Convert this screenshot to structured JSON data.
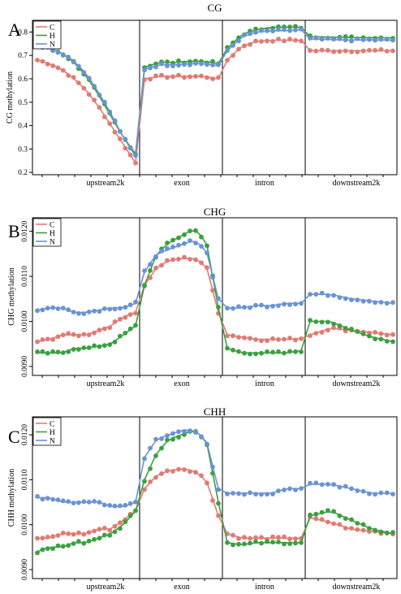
{
  "chart_data": [
    {
      "type": "line",
      "panel_letter": "A",
      "title": "CG",
      "ylabel": "CG methylation",
      "regions": [
        "upstream2k",
        "exon",
        "intron",
        "downstream2k"
      ],
      "ylim": [
        0.19,
        0.85
      ],
      "yticks": [
        0.2,
        0.3,
        0.4,
        0.5,
        0.6,
        0.7,
        0.8
      ],
      "yticklabels": [
        "0.2",
        "0.3",
        "0.4",
        "0.5",
        "0.6",
        "0.7",
        "0.8"
      ],
      "legend": [
        "C",
        "H",
        "N"
      ],
      "legend_position": "top-left",
      "series": [
        {
          "name": "C",
          "color": "#e07b72",
          "profile": [
            [
              0.68,
              0.665,
              0.64,
              0.6,
              0.55,
              0.48,
              0.4,
              0.32,
              0.24
            ],
            [
              0.6,
              0.61,
              0.61,
              0.61,
              0.61,
              0.6
            ],
            [
              0.68,
              0.74,
              0.76,
              0.765,
              0.765,
              0.765
            ],
            [
              0.72,
              0.72,
              0.72,
              0.72,
              0.72
            ]
          ]
        },
        {
          "name": "H",
          "color": "#3aa040",
          "profile": [
            [
              0.74,
              0.73,
              0.71,
              0.67,
              0.61,
              0.53,
              0.44,
              0.35,
              0.28
            ],
            [
              0.65,
              0.67,
              0.67,
              0.675,
              0.675,
              0.665
            ],
            [
              0.73,
              0.79,
              0.81,
              0.82,
              0.82,
              0.82
            ],
            [
              0.78,
              0.778,
              0.776,
              0.776,
              0.775
            ]
          ]
        },
        {
          "name": "N",
          "color": "#6a93d3",
          "profile": [
            [
              0.74,
              0.73,
              0.71,
              0.675,
              0.62,
              0.54,
              0.45,
              0.35,
              0.27
            ],
            [
              0.64,
              0.66,
              0.66,
              0.665,
              0.665,
              0.655
            ],
            [
              0.72,
              0.78,
              0.8,
              0.805,
              0.806,
              0.81
            ],
            [
              0.77,
              0.768,
              0.766,
              0.766,
              0.765
            ]
          ]
        }
      ]
    },
    {
      "type": "line",
      "panel_letter": "B",
      "title": "CHG",
      "ylabel": "CHG methylation",
      "regions": [
        "upstream2k",
        "exon",
        "intron",
        "downstream2k"
      ],
      "ylim": [
        0.0088,
        0.0123
      ],
      "yticks": [
        0.009,
        0.01,
        0.011,
        0.012
      ],
      "yticklabels": [
        "0.0090",
        "0.0100",
        "0.0110",
        "0.0120"
      ],
      "legend": [
        "C",
        "H",
        "N"
      ],
      "legend_position": "top-left",
      "series": [
        {
          "name": "C",
          "color": "#e07b72",
          "profile": [
            [
              0.00955,
              0.0096,
              0.0097,
              0.0097,
              0.0097,
              0.0098,
              0.0099,
              0.0101,
              0.0102
            ],
            [
              0.0108,
              0.0112,
              0.01135,
              0.0114,
              0.0114,
              0.01125,
              0.0102
            ],
            [
              0.0097,
              0.00965,
              0.0096,
              0.0096,
              0.0096,
              0.00962
            ],
            [
              0.0097,
              0.00985,
              0.0098,
              0.00975,
              0.0097
            ]
          ]
        },
        {
          "name": "H",
          "color": "#3aa040",
          "profile": [
            [
              0.0093,
              0.0093,
              0.0093,
              0.0094,
              0.0094,
              0.00945,
              0.0095,
              0.0097,
              0.0099
            ],
            [
              0.0108,
              0.0115,
              0.01175,
              0.0119,
              0.01205,
              0.0118,
              0.0103
            ],
            [
              0.0094,
              0.0093,
              0.0093,
              0.0093,
              0.0093,
              0.00935
            ],
            [
              0.01,
              0.01,
              0.0098,
              0.00965,
              0.00955
            ]
          ]
        },
        {
          "name": "N",
          "color": "#6a93d3",
          "profile": [
            [
              0.01025,
              0.0103,
              0.0103,
              0.0102,
              0.0102,
              0.01025,
              0.0103,
              0.0103,
              0.0104
            ],
            [
              0.0111,
              0.0115,
              0.0116,
              0.0117,
              0.0118,
              0.0116,
              0.0105
            ],
            [
              0.0103,
              0.0103,
              0.01035,
              0.01035,
              0.0104,
              0.0104
            ],
            [
              0.0106,
              0.0106,
              0.0105,
              0.01045,
              0.0104
            ]
          ]
        }
      ]
    },
    {
      "type": "line",
      "panel_letter": "C",
      "title": "CHH",
      "ylabel": "CHH methylation",
      "regions": [
        "upstream2k",
        "exon",
        "intron",
        "downstream2k"
      ],
      "ylim": [
        0.0088,
        0.0124
      ],
      "yticks": [
        0.009,
        0.01,
        0.011,
        0.012
      ],
      "yticklabels": [
        "0.0090",
        "0.0100",
        "0.0110",
        "0.0120"
      ],
      "legend": [
        "C",
        "H",
        "N"
      ],
      "legend_position": "top-left",
      "series": [
        {
          "name": "C",
          "color": "#e07b72",
          "profile": [
            [
              0.0097,
              0.0097,
              0.0098,
              0.0098,
              0.0098,
              0.0099,
              0.0099,
              0.0101,
              0.0103
            ],
            [
              0.0108,
              0.0111,
              0.0112,
              0.01125,
              0.0112,
              0.011,
              0.0102
            ],
            [
              0.0098,
              0.0097,
              0.0097,
              0.0097,
              0.0097,
              0.0097
            ],
            [
              0.01015,
              0.01005,
              0.0099,
              0.00985,
              0.0098
            ]
          ]
        },
        {
          "name": "H",
          "color": "#3aa040",
          "profile": [
            [
              0.0094,
              0.0095,
              0.0095,
              0.0096,
              0.0096,
              0.0097,
              0.0098,
              0.01,
              0.0103
            ],
            [
              0.011,
              0.0116,
              0.0119,
              0.012,
              0.0121,
              0.0119,
              0.0105
            ],
            [
              0.0096,
              0.00955,
              0.0096,
              0.0096,
              0.0096,
              0.0096
            ],
            [
              0.0102,
              0.0103,
              0.0101,
              0.0099,
              0.0098
            ]
          ]
        },
        {
          "name": "N",
          "color": "#6a93d3",
          "profile": [
            [
              0.0106,
              0.0106,
              0.0105,
              0.0105,
              0.0105,
              0.0105,
              0.0104,
              0.0104,
              0.0105
            ],
            [
              0.0115,
              0.0119,
              0.012,
              0.0121,
              0.0121,
              0.0119,
              0.0108
            ],
            [
              0.0107,
              0.0107,
              0.0107,
              0.0107,
              0.0108,
              0.0108
            ],
            [
              0.0109,
              0.0109,
              0.0108,
              0.0107,
              0.0107
            ]
          ]
        }
      ]
    }
  ]
}
